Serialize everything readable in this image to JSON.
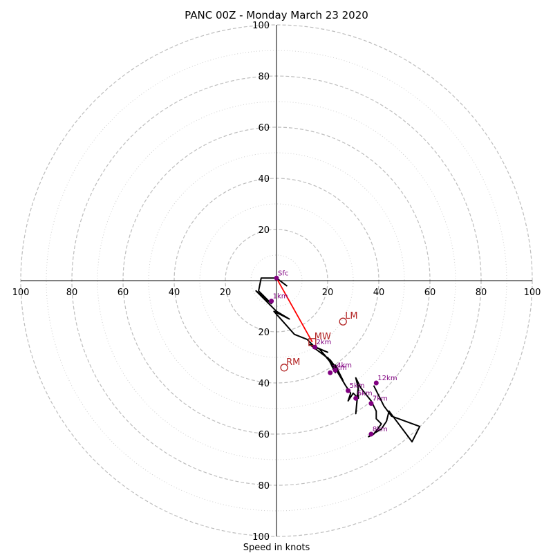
{
  "chart_data": {
    "type": "hodograph",
    "title": "PANC 00Z - Monday March 23 2020",
    "xlabel": "Speed in knots",
    "units": "knots",
    "rings_major": [
      20,
      40,
      60,
      80,
      100
    ],
    "rings_minor": [
      10,
      30,
      50,
      70,
      90
    ],
    "tick_labels": {
      "x": [
        "100",
        "80",
        "60",
        "40",
        "20",
        "20",
        "40",
        "60",
        "80",
        "100"
      ],
      "y": [
        "100",
        "80",
        "60",
        "40",
        "20",
        "20",
        "40",
        "60",
        "80",
        "100"
      ]
    },
    "xlim": [
      -100,
      100
    ],
    "ylim": [
      -100,
      100
    ],
    "grid": true,
    "trace": [
      [
        0,
        1
      ],
      [
        4,
        -2
      ],
      [
        0,
        1
      ],
      [
        -6,
        1
      ],
      [
        -7,
        -4
      ],
      [
        -2,
        -9
      ],
      [
        -8,
        -4
      ],
      [
        0,
        -12
      ],
      [
        5,
        -15
      ],
      [
        -1,
        -12
      ],
      [
        7,
        -21
      ],
      [
        12,
        -23
      ],
      [
        15,
        -26
      ],
      [
        20,
        -28
      ],
      [
        13,
        -25
      ],
      [
        21,
        -31
      ],
      [
        24,
        -35
      ],
      [
        17,
        -27
      ],
      [
        22,
        -33
      ],
      [
        23,
        -36
      ],
      [
        20,
        -30
      ],
      [
        24,
        -36
      ],
      [
        23,
        -33
      ],
      [
        26,
        -39
      ],
      [
        23,
        -34
      ],
      [
        24,
        -36
      ],
      [
        27,
        -41
      ],
      [
        29,
        -44
      ],
      [
        28,
        -47
      ],
      [
        30,
        -44
      ],
      [
        32,
        -46
      ],
      [
        32,
        -41
      ],
      [
        31,
        -52
      ],
      [
        32,
        -42
      ],
      [
        31,
        -38
      ],
      [
        33,
        -42
      ],
      [
        37,
        -47
      ],
      [
        39,
        -51
      ],
      [
        39,
        -54
      ],
      [
        41,
        -56
      ],
      [
        38,
        -60
      ],
      [
        36,
        -61
      ],
      [
        41,
        -58
      ],
      [
        43,
        -55
      ],
      [
        44,
        -51
      ],
      [
        53,
        -63
      ],
      [
        56,
        -57
      ],
      [
        45,
        -53
      ],
      [
        42,
        -49
      ],
      [
        38,
        -41
      ]
    ],
    "height_markers": [
      {
        "label": "Sfc",
        "u": 0,
        "v": 1
      },
      {
        "label": "1km",
        "u": -2,
        "v": -8
      },
      {
        "label": "2km",
        "u": 15,
        "v": -26
      },
      {
        "label": "3km",
        "u": 21,
        "v": -36
      },
      {
        "label": "4km",
        "u": 23,
        "v": -35
      },
      {
        "label": "5km",
        "u": 28,
        "v": -43
      },
      {
        "label": "6km",
        "u": 31,
        "v": -46
      },
      {
        "label": "7km",
        "u": 37,
        "v": -48
      },
      {
        "label": "8km",
        "u": 37,
        "v": -60
      },
      {
        "label": "12km",
        "u": 39,
        "v": -40
      }
    ],
    "storm_motions": [
      {
        "label": "LM",
        "u": 26,
        "v": -16,
        "shape": "circle"
      },
      {
        "label": "MW",
        "u": 14,
        "v": -24,
        "shape": "square"
      },
      {
        "label": "RM",
        "u": 3,
        "v": -34,
        "shape": "circle"
      }
    ],
    "bunkers_vector": {
      "from": [
        0,
        1
      ],
      "to": [
        14,
        -24
      ]
    },
    "colors": {
      "trace": "#000000",
      "markers": "#800080",
      "storm_motion": "#b22222",
      "bunkers_line": "#ff0000",
      "major_grid": "#bdbdbd",
      "minor_grid": "#cfcfcf"
    }
  }
}
